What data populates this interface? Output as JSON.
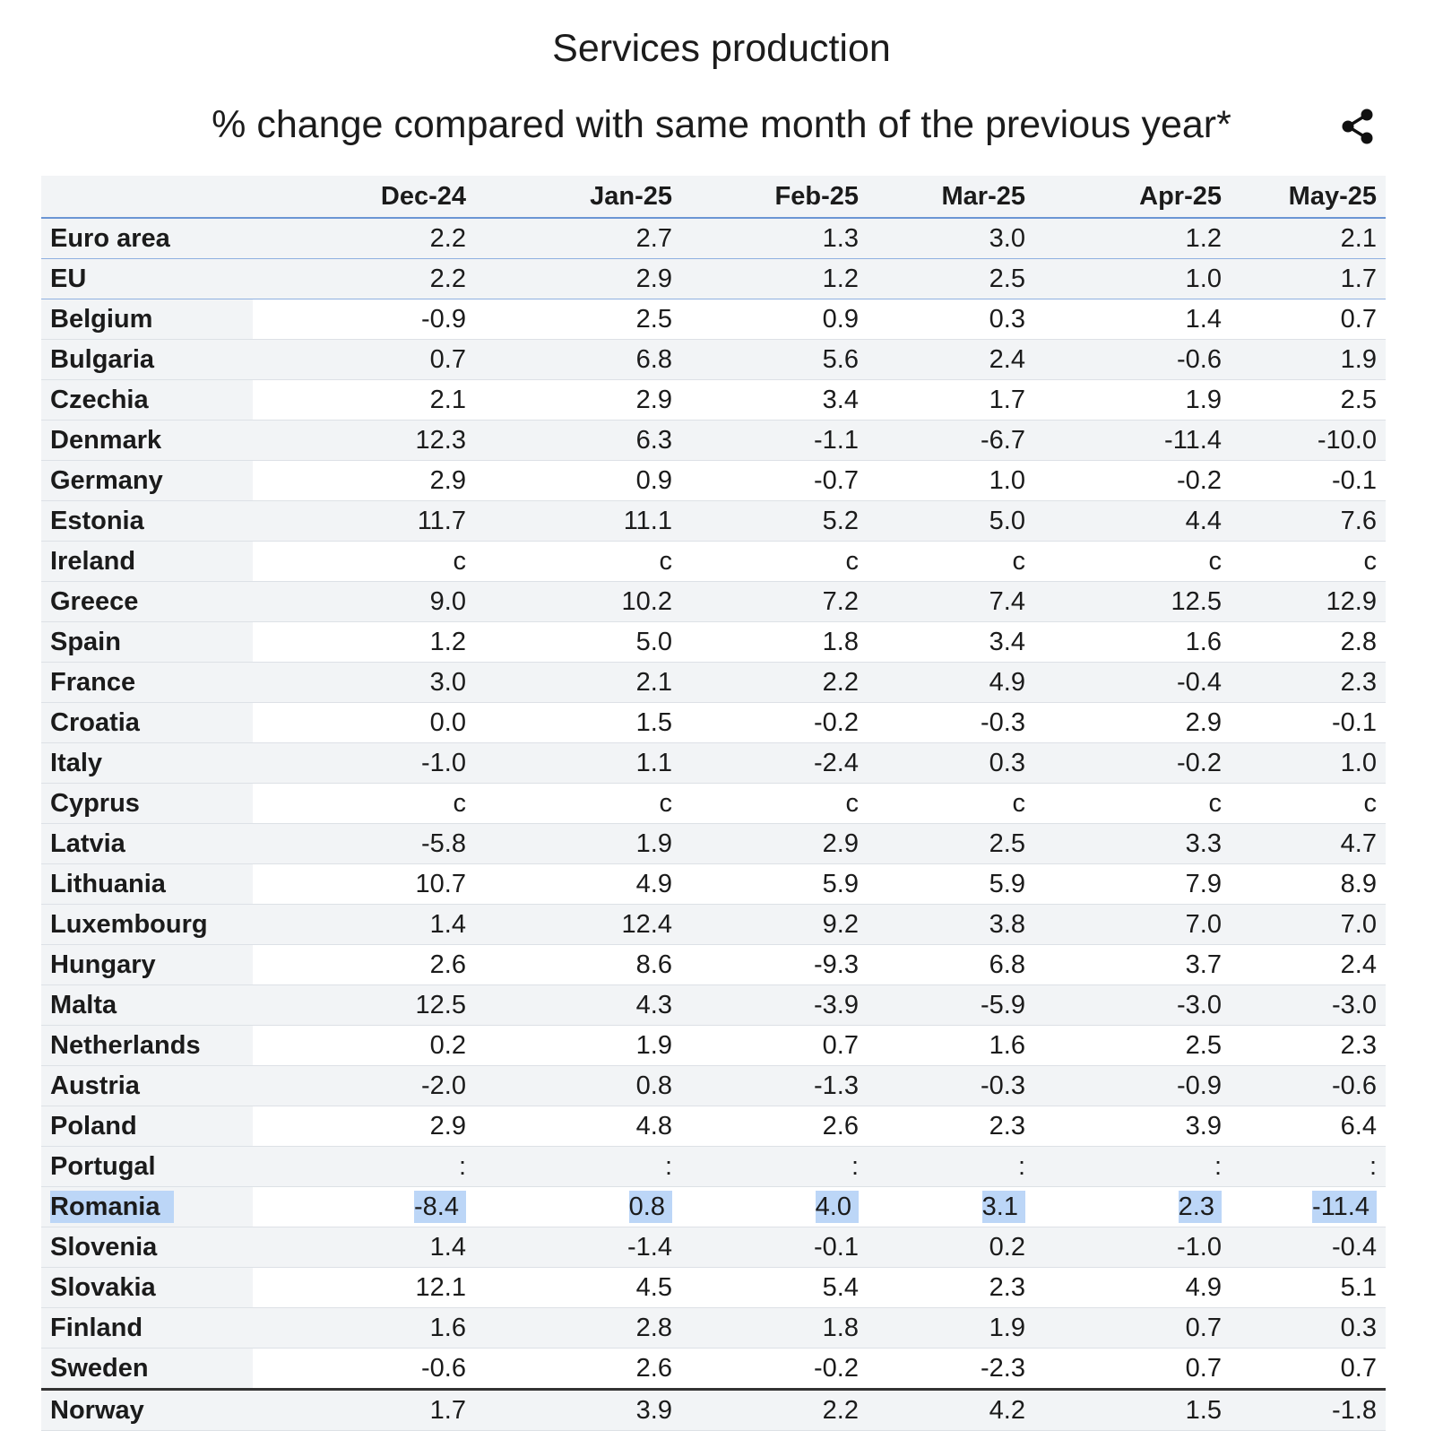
{
  "header": {
    "title": "Services production",
    "subtitle": "% change compared with same month of the previous year*"
  },
  "icons": {
    "share": "share-icon"
  },
  "colors": {
    "highlight": "#bcd6f7",
    "rule": "#6b95d4",
    "stripe": "#f2f4f6"
  },
  "chart_data": {
    "type": "table",
    "title": "Services production",
    "subtitle": "% change compared with same month of the previous year*",
    "columns": [
      "",
      "Dec-24",
      "Jan-25",
      "Feb-25",
      "Mar-25",
      "Apr-25",
      "May-25"
    ],
    "rows": [
      {
        "name": "Euro area",
        "values": [
          "2.2",
          "2.7",
          "1.3",
          "3.0",
          "1.2",
          "2.1"
        ]
      },
      {
        "name": "EU",
        "values": [
          "2.2",
          "2.9",
          "1.2",
          "2.5",
          "1.0",
          "1.7"
        ]
      },
      {
        "name": "Belgium",
        "values": [
          "-0.9",
          "2.5",
          "0.9",
          "0.3",
          "1.4",
          "0.7"
        ]
      },
      {
        "name": "Bulgaria",
        "values": [
          "0.7",
          "6.8",
          "5.6",
          "2.4",
          "-0.6",
          "1.9"
        ]
      },
      {
        "name": "Czechia",
        "values": [
          "2.1",
          "2.9",
          "3.4",
          "1.7",
          "1.9",
          "2.5"
        ]
      },
      {
        "name": "Denmark",
        "values": [
          "12.3",
          "6.3",
          "-1.1",
          "-6.7",
          "-11.4",
          "-10.0"
        ]
      },
      {
        "name": "Germany",
        "values": [
          "2.9",
          "0.9",
          "-0.7",
          "1.0",
          "-0.2",
          "-0.1"
        ]
      },
      {
        "name": "Estonia",
        "values": [
          "11.7",
          "11.1",
          "5.2",
          "5.0",
          "4.4",
          "7.6"
        ]
      },
      {
        "name": "Ireland",
        "values": [
          "c",
          "c",
          "c",
          "c",
          "c",
          "c"
        ]
      },
      {
        "name": "Greece",
        "values": [
          "9.0",
          "10.2",
          "7.2",
          "7.4",
          "12.5",
          "12.9"
        ]
      },
      {
        "name": "Spain",
        "values": [
          "1.2",
          "5.0",
          "1.8",
          "3.4",
          "1.6",
          "2.8"
        ]
      },
      {
        "name": "France",
        "values": [
          "3.0",
          "2.1",
          "2.2",
          "4.9",
          "-0.4",
          "2.3"
        ]
      },
      {
        "name": "Croatia",
        "values": [
          "0.0",
          "1.5",
          "-0.2",
          "-0.3",
          "2.9",
          "-0.1"
        ]
      },
      {
        "name": "Italy",
        "values": [
          "-1.0",
          "1.1",
          "-2.4",
          "0.3",
          "-0.2",
          "1.0"
        ]
      },
      {
        "name": "Cyprus",
        "values": [
          "c",
          "c",
          "c",
          "c",
          "c",
          "c"
        ]
      },
      {
        "name": "Latvia",
        "values": [
          "-5.8",
          "1.9",
          "2.9",
          "2.5",
          "3.3",
          "4.7"
        ]
      },
      {
        "name": "Lithuania",
        "values": [
          "10.7",
          "4.9",
          "5.9",
          "5.9",
          "7.9",
          "8.9"
        ]
      },
      {
        "name": "Luxembourg",
        "values": [
          "1.4",
          "12.4",
          "9.2",
          "3.8",
          "7.0",
          "7.0"
        ]
      },
      {
        "name": "Hungary",
        "values": [
          "2.6",
          "8.6",
          "-9.3",
          "6.8",
          "3.7",
          "2.4"
        ]
      },
      {
        "name": "Malta",
        "values": [
          "12.5",
          "4.3",
          "-3.9",
          "-5.9",
          "-3.0",
          "-3.0"
        ]
      },
      {
        "name": "Netherlands",
        "values": [
          "0.2",
          "1.9",
          "0.7",
          "1.6",
          "2.5",
          "2.3"
        ]
      },
      {
        "name": "Austria",
        "values": [
          "-2.0",
          "0.8",
          "-1.3",
          "-0.3",
          "-0.9",
          "-0.6"
        ]
      },
      {
        "name": "Poland",
        "values": [
          "2.9",
          "4.8",
          "2.6",
          "2.3",
          "3.9",
          "6.4"
        ]
      },
      {
        "name": "Portugal",
        "values": [
          ":",
          ":",
          ":",
          ":",
          ":",
          ":"
        ]
      },
      {
        "name": "Romania",
        "values": [
          "-8.4",
          "0.8",
          "4.0",
          "3.1",
          "2.3",
          "-11.4"
        ],
        "highlighted": true
      },
      {
        "name": "Slovenia",
        "values": [
          "1.4",
          "-1.4",
          "-0.1",
          "0.2",
          "-1.0",
          "-0.4"
        ]
      },
      {
        "name": "Slovakia",
        "values": [
          "12.1",
          "4.5",
          "5.4",
          "2.3",
          "4.9",
          "5.1"
        ]
      },
      {
        "name": "Finland",
        "values": [
          "1.6",
          "2.8",
          "1.8",
          "1.9",
          "0.7",
          "0.3"
        ]
      },
      {
        "name": "Sweden",
        "values": [
          "-0.6",
          "2.6",
          "-0.2",
          "-2.3",
          "0.7",
          "0.7"
        ]
      },
      {
        "name": "Norway",
        "values": [
          "1.7",
          "3.9",
          "2.2",
          "4.2",
          "1.5",
          "-1.8"
        ]
      }
    ]
  }
}
